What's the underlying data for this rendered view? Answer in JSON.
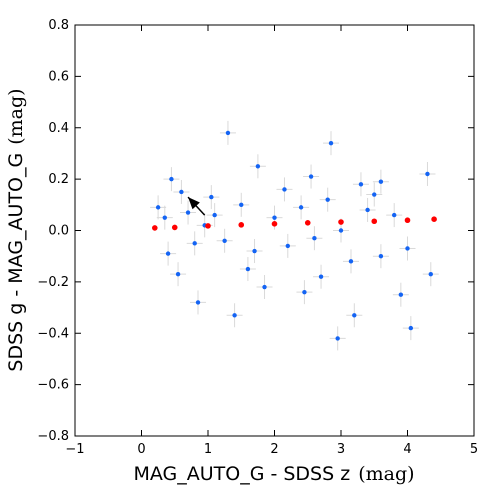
{
  "chart_data": {
    "type": "scatter",
    "xlabel": "MAG_AUTO_G  -  SDSS z",
    "xlabel_unit": "(mag)",
    "ylabel": "SDSS g  -  MAG_AUTO_G",
    "ylabel_unit": "(mag)",
    "xlim": [
      -1,
      5
    ],
    "ylim": [
      -0.8,
      0.8
    ],
    "x_ticks": [
      "−1",
      "0",
      "1",
      "2",
      "3",
      "4",
      "5"
    ],
    "y_ticks": [
      "−0.8",
      "−0.6",
      "−0.4",
      "−0.2",
      "0.0",
      "0.2",
      "0.4",
      "0.6",
      "0.8"
    ],
    "grid": false,
    "colors": {
      "points": "#1464f4",
      "errorbars": "#d9d9d9",
      "fit_line": "#ff0000",
      "arrow": "#000000"
    },
    "series": [
      {
        "style": "points_with_errorbars",
        "points": [
          [
            1.3,
            0.38
          ],
          [
            2.85,
            0.34
          ],
          [
            4.3,
            0.22
          ],
          [
            3.6,
            0.19
          ],
          [
            3.3,
            0.18
          ],
          [
            1.75,
            0.25
          ],
          [
            2.55,
            0.21
          ],
          [
            1.05,
            0.13
          ],
          [
            0.45,
            0.2
          ],
          [
            0.25,
            0.09
          ],
          [
            2.95,
            -0.42
          ],
          [
            3.2,
            -0.33
          ],
          [
            1.4,
            -0.33
          ],
          [
            4.05,
            -0.38
          ],
          [
            2.45,
            -0.24
          ],
          [
            0.85,
            -0.28
          ],
          [
            3.9,
            -0.25
          ],
          [
            4.35,
            -0.17
          ],
          [
            1.85,
            -0.22
          ],
          [
            0.55,
            -0.17
          ],
          [
            0.7,
            0.07
          ],
          [
            0.8,
            -0.05
          ],
          [
            0.95,
            0.02
          ],
          [
            1.1,
            0.06
          ],
          [
            1.25,
            -0.04
          ],
          [
            1.5,
            0.1
          ],
          [
            1.7,
            -0.08
          ],
          [
            2.0,
            0.05
          ],
          [
            2.2,
            -0.06
          ],
          [
            2.4,
            0.09
          ],
          [
            2.6,
            -0.03
          ],
          [
            2.8,
            0.12
          ],
          [
            3.0,
            0.0
          ],
          [
            3.4,
            0.08
          ],
          [
            3.6,
            -0.1
          ],
          [
            3.8,
            0.06
          ],
          [
            4.0,
            -0.07
          ],
          [
            0.4,
            -0.09
          ],
          [
            0.35,
            0.05
          ],
          [
            0.6,
            0.15
          ],
          [
            2.15,
            0.16
          ],
          [
            3.15,
            -0.12
          ],
          [
            1.6,
            -0.15
          ],
          [
            2.7,
            -0.18
          ],
          [
            3.5,
            0.14
          ]
        ]
      },
      {
        "style": "red_trend",
        "points": [
          [
            0.2,
            0.01
          ],
          [
            0.5,
            0.012
          ],
          [
            1.0,
            0.018
          ],
          [
            1.5,
            0.022
          ],
          [
            2.0,
            0.026
          ],
          [
            2.5,
            0.03
          ],
          [
            3.0,
            0.033
          ],
          [
            3.5,
            0.036
          ],
          [
            4.0,
            0.04
          ],
          [
            4.4,
            0.044
          ]
        ]
      }
    ],
    "annotations": [
      {
        "type": "arrow",
        "from": [
          0.95,
          0.06
        ],
        "to": [
          0.7,
          0.13
        ]
      }
    ]
  }
}
